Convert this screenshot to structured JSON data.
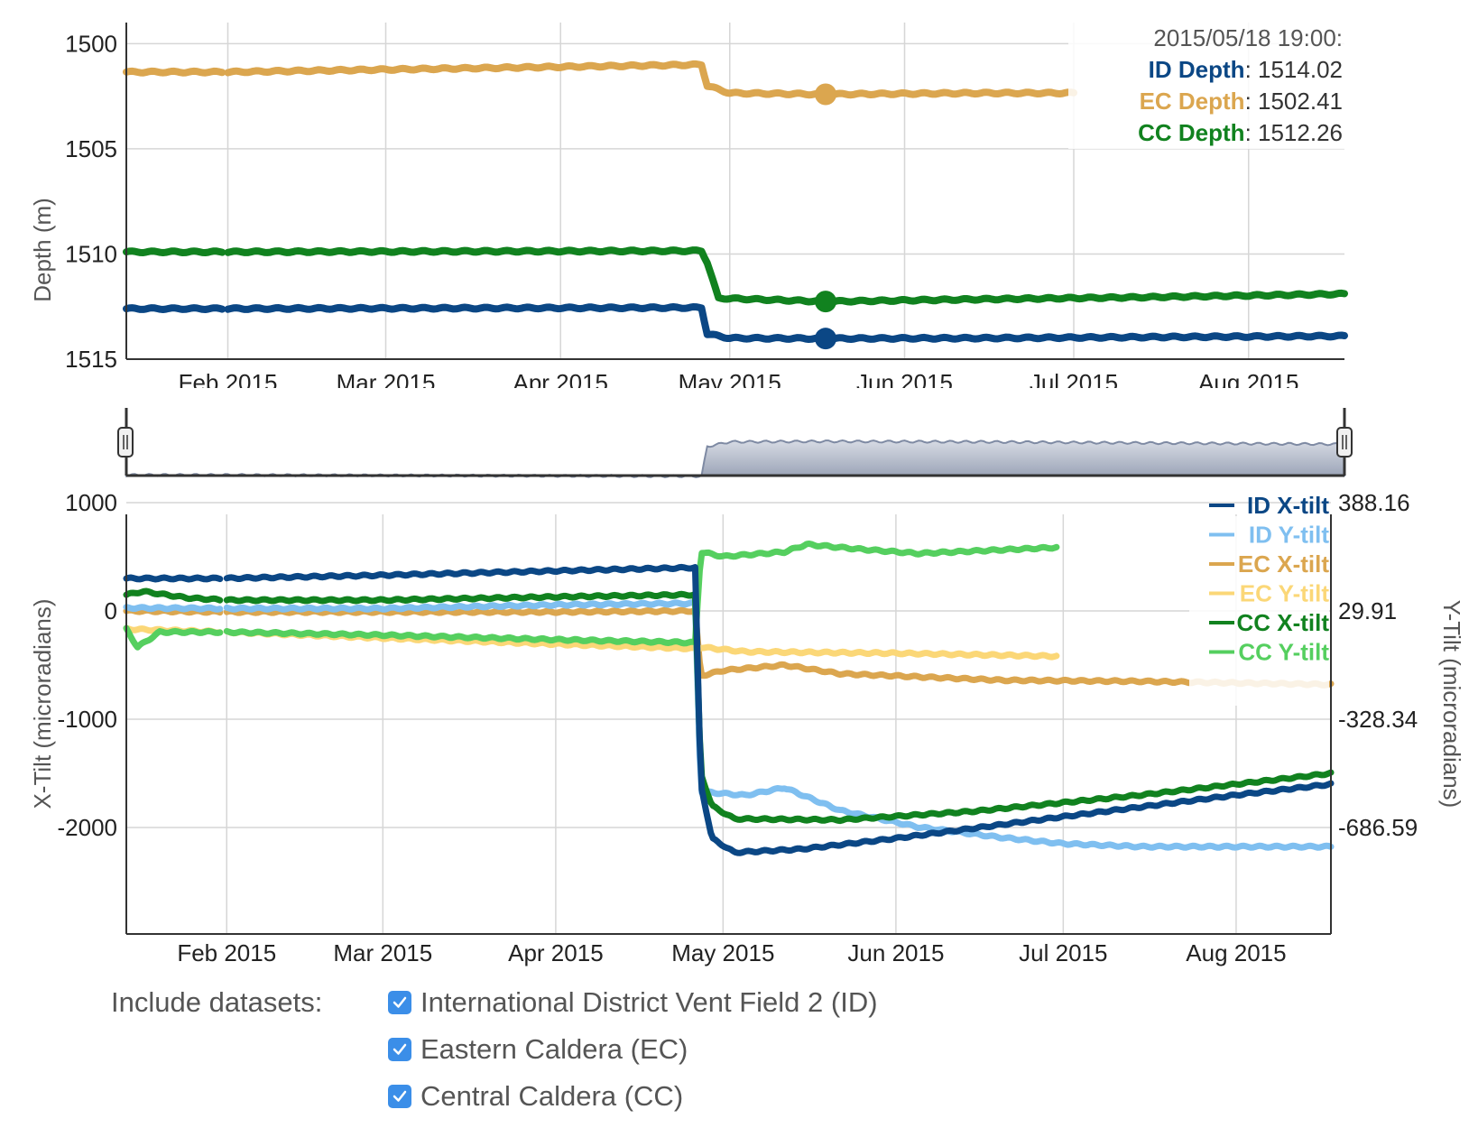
{
  "colors": {
    "id": "#0b4785",
    "ec": "#dba64f",
    "cc": "#11821f",
    "id_y": "#7fbff0",
    "ec_y": "#fbd777",
    "cc_y": "#55cf5f",
    "grid": "#d6d6d6",
    "navigator_fill": "#b8bfcd",
    "navigator_line": "#7e8aa3"
  },
  "depth_chart": {
    "ylabel": "Depth (m)",
    "y_ticks": [
      "1500",
      "1505",
      "1510",
      "1515"
    ],
    "x_ticks": [
      "Feb 2015",
      "Mar 2015",
      "Apr 2015",
      "May 2015",
      "Jun 2015",
      "Jul 2015",
      "Aug 2015"
    ],
    "tooltip": {
      "date": "2015/05/18 19:00:",
      "rows": [
        {
          "name": "ID Depth",
          "value": ": 1514.02",
          "color_key": "id"
        },
        {
          "name": "EC Depth",
          "value": ": 1502.41",
          "color_key": "ec"
        },
        {
          "name": "CC Depth",
          "value": ": 1512.26",
          "color_key": "cc"
        }
      ]
    }
  },
  "navigator": {
    "handle_left": "navigator-left-handle",
    "handle_right": "navigator-right-handle"
  },
  "tilt_chart": {
    "ylabel_left": "X-Tilt (microradians)",
    "ylabel_right": "Y-Tilt (microradians)",
    "y_ticks_left": [
      "1000",
      "0",
      "-1000",
      "-2000"
    ],
    "y_ticks_right": [
      "388.16",
      "29.91",
      "-328.34",
      "-686.59"
    ],
    "x_ticks": [
      "Feb 2015",
      "Mar 2015",
      "Apr 2015",
      "May 2015",
      "Jun 2015",
      "Jul 2015",
      "Aug 2015"
    ],
    "legend": [
      {
        "label": "ID X-tilt",
        "color_key": "id"
      },
      {
        "label": "ID Y-tilt",
        "color_key": "id_y"
      },
      {
        "label": "EC X-tilt",
        "color_key": "ec"
      },
      {
        "label": "EC Y-tilt",
        "color_key": "ec_y"
      },
      {
        "label": "CC X-tilt",
        "color_key": "cc"
      },
      {
        "label": "CC Y-tilt",
        "color_key": "cc_y"
      }
    ]
  },
  "chart_data": [
    {
      "type": "scatter",
      "title": "",
      "xlabel": "",
      "ylabel": "Depth (m)",
      "ylim": [
        1515,
        1500
      ],
      "y_inverted": true,
      "x_range": [
        "2015-01-14",
        "2015-08-18"
      ],
      "grid": true,
      "series": [
        {
          "name": "EC Depth",
          "color_key": "ec",
          "x": [
            "2015-01-14",
            "2015-01-31",
            "2015-02-01",
            "2015-04-26",
            "2015-04-27",
            "2015-05-01",
            "2015-05-18",
            "2015-06-15",
            "2015-07-01"
          ],
          "y": [
            1501.35,
            1501.35,
            1501.35,
            1501.0,
            1502.0,
            1502.35,
            1502.41,
            1502.35,
            1502.35
          ]
        },
        {
          "name": "ID Depth",
          "color_key": "id",
          "x": [
            "2015-01-14",
            "2015-01-31",
            "2015-02-01",
            "2015-04-26",
            "2015-04-27",
            "2015-05-01",
            "2015-05-18",
            "2015-06-15",
            "2015-07-15",
            "2015-08-18"
          ],
          "y": [
            1512.6,
            1512.6,
            1512.6,
            1512.55,
            1513.8,
            1514.0,
            1514.02,
            1514.0,
            1513.95,
            1513.9
          ]
        },
        {
          "name": "CC Depth",
          "color_key": "cc",
          "x": [
            "2015-01-14",
            "2015-01-31",
            "2015-02-01",
            "2015-04-26",
            "2015-04-27",
            "2015-04-29",
            "2015-05-18",
            "2015-06-15",
            "2015-07-15",
            "2015-08-18"
          ],
          "y": [
            1509.9,
            1509.9,
            1509.9,
            1509.85,
            1510.4,
            1512.1,
            1512.26,
            1512.15,
            1512.05,
            1511.9
          ]
        }
      ]
    },
    {
      "type": "scatter",
      "title": "",
      "xlabel": "",
      "ylabel": "X-Tilt (microradians)",
      "ylabel_right": "Y-Tilt (microradians)",
      "ylim": [
        -2500,
        1000
      ],
      "ylim_right": [
        -865.7,
        388.16
      ],
      "x_range": [
        "2015-01-14",
        "2015-08-18"
      ],
      "grid": true,
      "series": [
        {
          "name": "ID X-tilt",
          "color_key": "id",
          "axis": "left",
          "x": [
            "2015-01-14",
            "2015-01-31",
            "2015-03-01",
            "2015-04-01",
            "2015-04-26",
            "2015-04-27",
            "2015-04-29",
            "2015-05-03",
            "2015-05-15",
            "2015-06-01",
            "2015-07-01",
            "2015-08-01",
            "2015-08-18"
          ],
          "y": [
            300,
            300,
            330,
            370,
            400,
            -1600,
            -2100,
            -2230,
            -2200,
            -2100,
            -1900,
            -1700,
            -1600
          ]
        },
        {
          "name": "ID Y-tilt",
          "color_key": "id_y",
          "axis": "right",
          "x": [
            "2015-01-14",
            "2015-02-01",
            "2015-03-01",
            "2015-04-01",
            "2015-04-26",
            "2015-04-27",
            "2015-05-05",
            "2015-05-12",
            "2015-05-22",
            "2015-06-05",
            "2015-06-20",
            "2015-07-01",
            "2015-07-15",
            "2015-08-18"
          ],
          "y": [
            40,
            38,
            38,
            50,
            55,
            -568,
            -580,
            -555,
            -630,
            -685,
            -720,
            -740,
            -750,
            -750
          ]
        },
        {
          "name": "EC X-tilt",
          "color_key": "ec",
          "axis": "left",
          "x": [
            "2015-01-14",
            "2015-02-01",
            "2015-03-01",
            "2015-04-01",
            "2015-04-26",
            "2015-04-27",
            "2015-05-01",
            "2015-05-12",
            "2015-05-22",
            "2015-06-01",
            "2015-06-20",
            "2015-07-15",
            "2015-08-18"
          ],
          "y": [
            0,
            -10,
            -10,
            -10,
            0,
            -600,
            -550,
            -500,
            -580,
            -600,
            -640,
            -650,
            -680
          ]
        },
        {
          "name": "EC Y-tilt",
          "color_key": "ec_y",
          "axis": "right",
          "x": [
            "2015-01-14",
            "2015-02-01",
            "2015-03-01",
            "2015-04-01",
            "2015-04-26",
            "2015-04-27",
            "2015-05-05",
            "2015-06-01",
            "2015-06-30"
          ],
          "y": [
            -30,
            -40,
            -60,
            -80,
            -95,
            -90,
            -105,
            -110,
            -120
          ]
        },
        {
          "name": "CC X-tilt",
          "color_key": "cc",
          "axis": "left",
          "x": [
            "2015-01-14",
            "2015-01-17",
            "2015-01-25",
            "2015-02-01",
            "2015-03-01",
            "2015-04-01",
            "2015-04-26",
            "2015-04-27",
            "2015-04-29",
            "2015-05-03",
            "2015-05-22",
            "2015-06-15",
            "2015-07-15",
            "2015-08-18"
          ],
          "y": [
            150,
            180,
            120,
            100,
            100,
            130,
            150,
            -1500,
            -1800,
            -1920,
            -1930,
            -1850,
            -1700,
            -1500
          ]
        },
        {
          "name": "CC Y-tilt",
          "color_key": "cc_y",
          "axis": "right",
          "x": [
            "2015-01-14",
            "2015-01-16",
            "2015-01-20",
            "2015-02-01",
            "2015-03-01",
            "2015-04-01",
            "2015-04-26",
            "2015-04-27",
            "2015-05-01",
            "2015-05-12",
            "2015-05-16",
            "2015-05-25",
            "2015-06-05",
            "2015-06-30"
          ],
          "y": [
            -30,
            -90,
            -40,
            -40,
            -50,
            -65,
            -75,
            225,
            210,
            225,
            250,
            235,
            220,
            240
          ]
        }
      ]
    }
  ],
  "datasets": {
    "title": "Include datasets:",
    "items": [
      {
        "label": "International District Vent Field 2 (ID)",
        "checked": true
      },
      {
        "label": "Eastern Caldera (EC)",
        "checked": true
      },
      {
        "label": "Central Caldera (CC)",
        "checked": true
      }
    ]
  }
}
